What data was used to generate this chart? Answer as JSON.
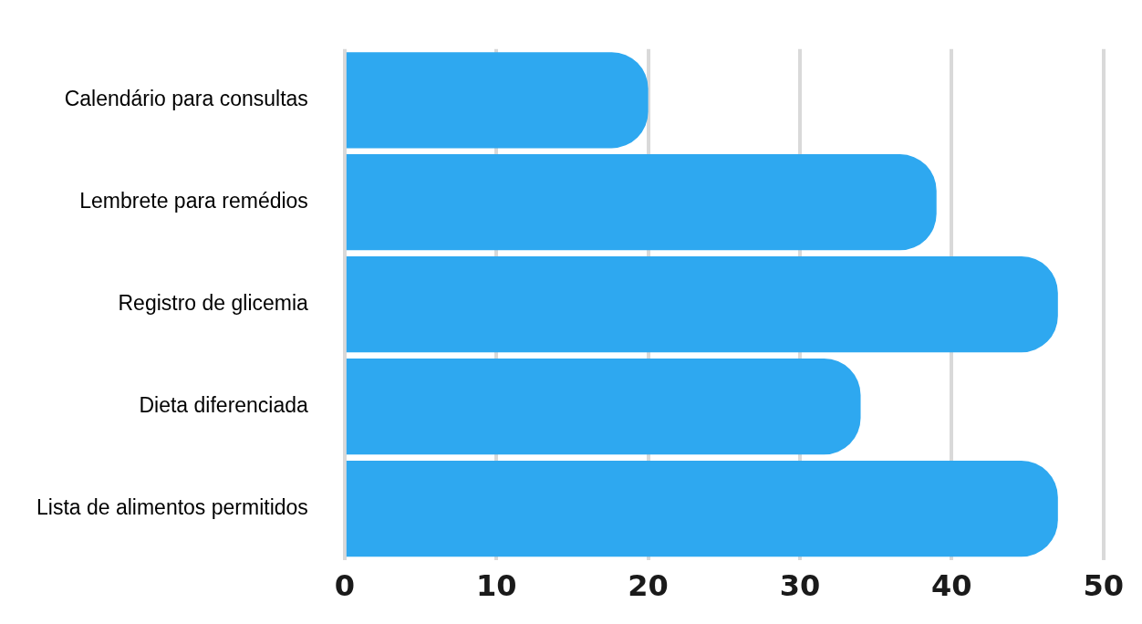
{
  "chart_data": {
    "type": "bar",
    "orientation": "horizontal",
    "categories": [
      "Calendário para consultas",
      "Lembrete para remédios",
      "Registro de glicemia",
      "Dieta diferenciada",
      "Lista de alimentos permitidos"
    ],
    "values": [
      20,
      39,
      47,
      34,
      47
    ],
    "color": "#2ea8f0",
    "xlim": [
      0,
      50
    ],
    "xticks": [
      0,
      10,
      20,
      30,
      40,
      50
    ],
    "grid": "x",
    "legend": false
  }
}
